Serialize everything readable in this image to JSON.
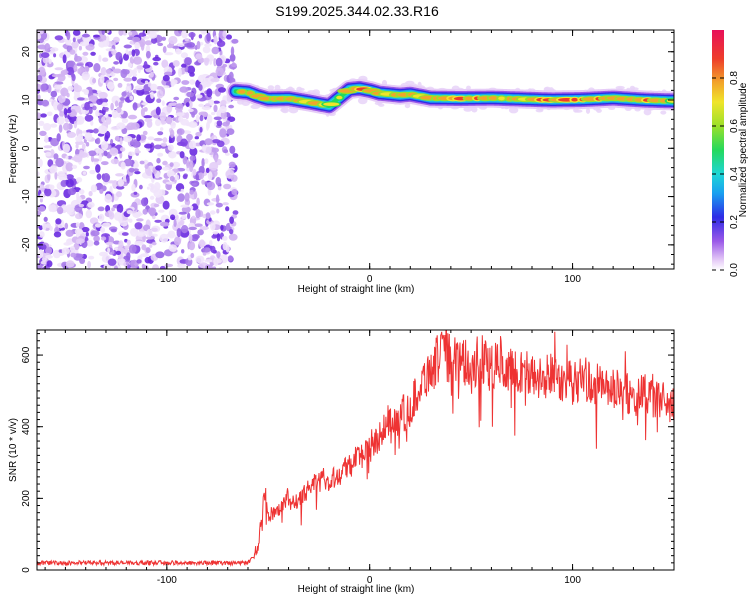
{
  "title": "S199.2025.344.02.33.R16",
  "chart_data": [
    {
      "type": "heatmap",
      "xlabel": "Height of straight line (km)",
      "ylabel": "Frequency (Hz)",
      "xlim": [
        -164,
        150
      ],
      "ylim": [
        -25,
        24.5
      ],
      "xticks": [
        -100,
        0,
        100
      ],
      "yticks": [
        -20,
        -10,
        0,
        10,
        20
      ],
      "noise_region_x": [
        -164,
        -66
      ],
      "signal_track": {
        "x": [
          -66,
          -60,
          -55,
          -50,
          -40,
          -30,
          -25,
          -20,
          -15,
          -10,
          -5,
          0,
          5,
          10,
          15,
          20,
          30,
          45,
          60,
          75,
          90,
          105,
          120,
          135,
          150
        ],
        "freq_hz": [
          11.8,
          11.6,
          10.8,
          10.2,
          10.3,
          9.6,
          9.2,
          8.8,
          10.5,
          12.2,
          12.4,
          12.0,
          11.4,
          11.2,
          11.0,
          11.2,
          10.4,
          10.3,
          10.4,
          10.2,
          10.0,
          10.1,
          10.4,
          10.0,
          9.8
        ],
        "peak_amplitude": [
          0.8,
          0.85,
          0.9,
          0.9,
          0.85,
          0.85,
          0.8,
          0.8,
          0.8,
          0.85,
          0.9,
          0.95,
          0.9,
          0.85,
          0.85,
          0.8,
          0.9,
          0.95,
          0.9,
          0.85,
          0.95,
          0.95,
          0.9,
          0.95,
          0.8
        ]
      },
      "colorbar": {
        "label": "Normalized spectral amplitude",
        "range": [
          0,
          1
        ],
        "ticks": [
          "0.0",
          "0.2",
          "0.4",
          "0.6",
          "0.8"
        ]
      }
    },
    {
      "type": "line",
      "xlabel": "Height of straight line (km)",
      "ylabel": "SNR (10 * v/v)",
      "xlim": [
        -164,
        150
      ],
      "ylim": [
        0,
        670
      ],
      "xticks": [
        -100,
        0,
        100
      ],
      "yticks": [
        0,
        200,
        400,
        600
      ],
      "series": [
        {
          "name": "SNR",
          "color": "#ee3333",
          "x": [
            -164,
            -140,
            -120,
            -100,
            -80,
            -60,
            -55,
            -52,
            -50,
            -45,
            -40,
            -35,
            -30,
            -25,
            -20,
            -15,
            -10,
            -5,
            0,
            5,
            10,
            15,
            20,
            25,
            30,
            35,
            40,
            45,
            50,
            55,
            60,
            65,
            70,
            75,
            80,
            85,
            90,
            95,
            100,
            105,
            110,
            115,
            120,
            125,
            130,
            135,
            140,
            145,
            150
          ],
          "values": [
            20,
            20,
            20,
            20,
            20,
            20,
            60,
            220,
            150,
            170,
            200,
            190,
            230,
            260,
            250,
            270,
            300,
            320,
            330,
            380,
            420,
            430,
            450,
            520,
            560,
            600,
            590,
            580,
            570,
            590,
            560,
            590,
            550,
            560,
            540,
            530,
            550,
            530,
            520,
            540,
            520,
            510,
            500,
            500,
            480,
            490,
            480,
            470,
            460
          ]
        }
      ]
    }
  ]
}
